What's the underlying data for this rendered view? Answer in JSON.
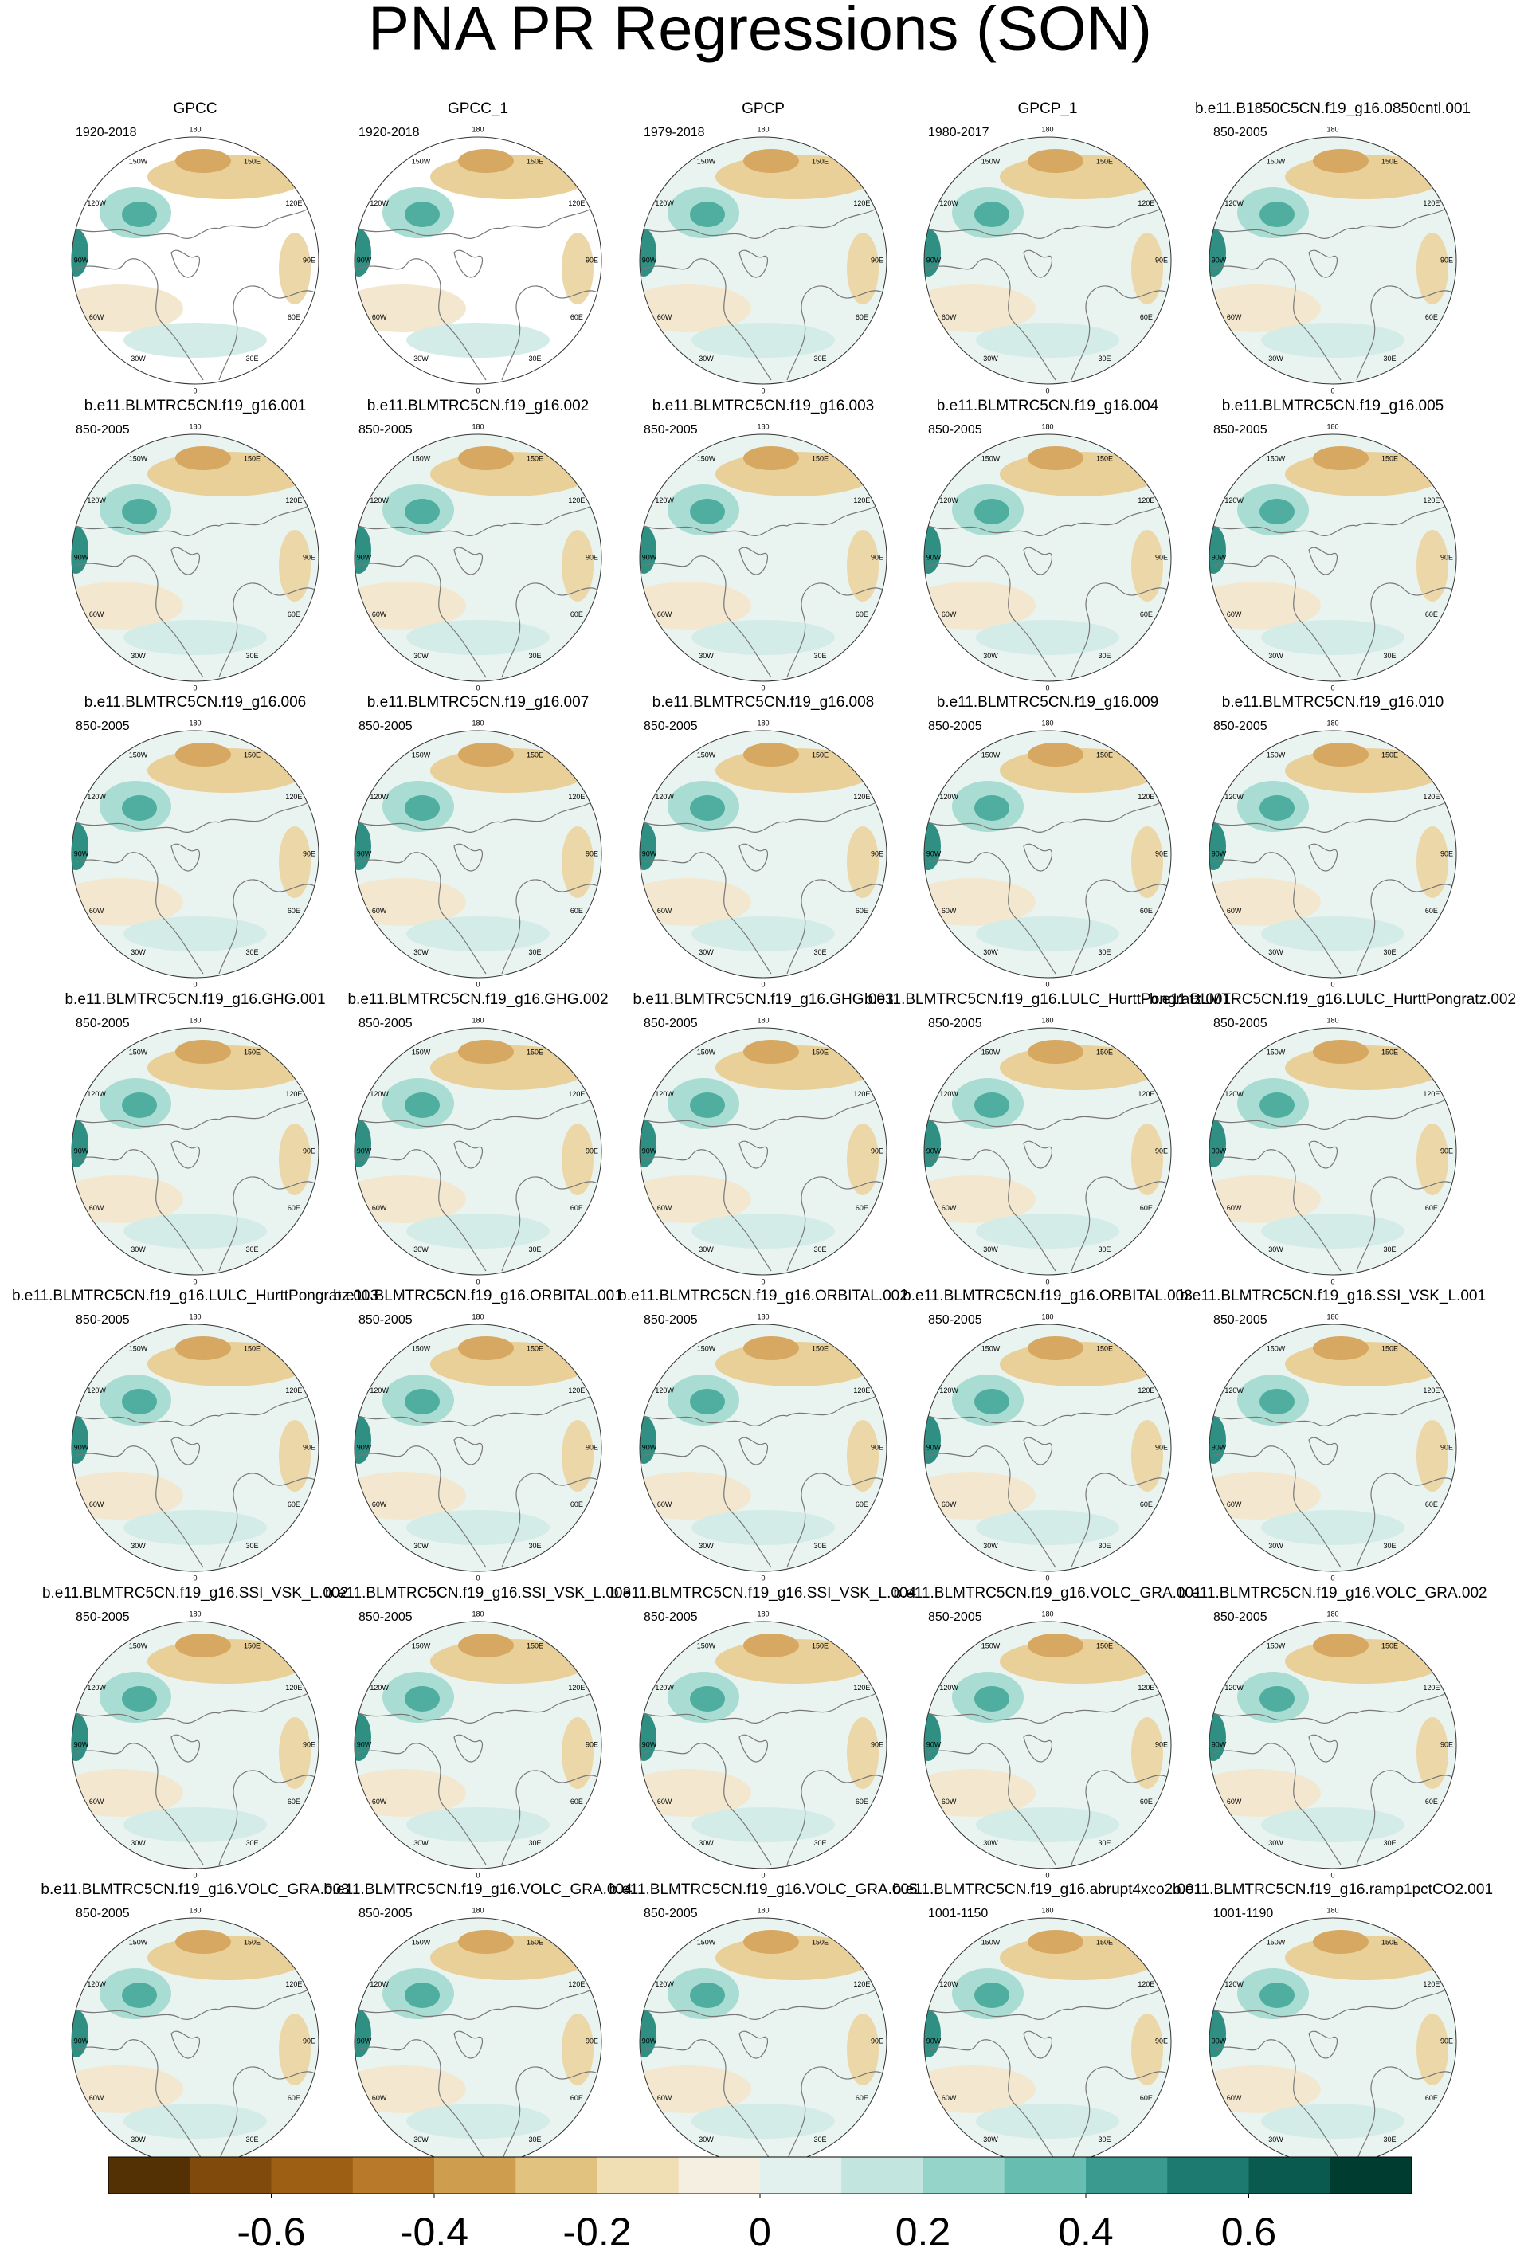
{
  "title": "PNA PR Regressions (SON)",
  "panels": [
    {
      "title": "GPCC",
      "period": "1920-2018"
    },
    {
      "title": "GPCC_1",
      "period": "1920-2018"
    },
    {
      "title": "GPCP",
      "period": "1979-2018"
    },
    {
      "title": "GPCP_1",
      "period": "1980-2017"
    },
    {
      "title": "b.e11.B1850C5CN.f19_g16.0850cntl.001",
      "period": "850-2005"
    },
    {
      "title": "b.e11.BLMTRC5CN.f19_g16.001",
      "period": "850-2005"
    },
    {
      "title": "b.e11.BLMTRC5CN.f19_g16.002",
      "period": "850-2005"
    },
    {
      "title": "b.e11.BLMTRC5CN.f19_g16.003",
      "period": "850-2005"
    },
    {
      "title": "b.e11.BLMTRC5CN.f19_g16.004",
      "period": "850-2005"
    },
    {
      "title": "b.e11.BLMTRC5CN.f19_g16.005",
      "period": "850-2005"
    },
    {
      "title": "b.e11.BLMTRC5CN.f19_g16.006",
      "period": "850-2005"
    },
    {
      "title": "b.e11.BLMTRC5CN.f19_g16.007",
      "period": "850-2005"
    },
    {
      "title": "b.e11.BLMTRC5CN.f19_g16.008",
      "period": "850-2005"
    },
    {
      "title": "b.e11.BLMTRC5CN.f19_g16.009",
      "period": "850-2005"
    },
    {
      "title": "b.e11.BLMTRC5CN.f19_g16.010",
      "period": "850-2005"
    },
    {
      "title": "b.e11.BLMTRC5CN.f19_g16.GHG.001",
      "period": "850-2005"
    },
    {
      "title": "b.e11.BLMTRC5CN.f19_g16.GHG.002",
      "period": "850-2005"
    },
    {
      "title": "b.e11.BLMTRC5CN.f19_g16.GHG.003",
      "period": "850-2005"
    },
    {
      "title": "b.e11.BLMTRC5CN.f19_g16.LULC_HurttPongratz.001",
      "period": "850-2005"
    },
    {
      "title": "b.e11.BLMTRC5CN.f19_g16.LULC_HurttPongratz.002",
      "period": "850-2005"
    },
    {
      "title": "b.e11.BLMTRC5CN.f19_g16.LULC_HurttPongratz.003",
      "period": "850-2005"
    },
    {
      "title": "b.e11.BLMTRC5CN.f19_g16.ORBITAL.001",
      "period": "850-2005"
    },
    {
      "title": "b.e11.BLMTRC5CN.f19_g16.ORBITAL.002",
      "period": "850-2005"
    },
    {
      "title": "b.e11.BLMTRC5CN.f19_g16.ORBITAL.003",
      "period": "850-2005"
    },
    {
      "title": "b.e11.BLMTRC5CN.f19_g16.SSI_VSK_L.001",
      "period": "850-2005"
    },
    {
      "title": "b.e11.BLMTRC5CN.f19_g16.SSI_VSK_L.002",
      "period": "850-2005"
    },
    {
      "title": "b.e11.BLMTRC5CN.f19_g16.SSI_VSK_L.003",
      "period": "850-2005"
    },
    {
      "title": "b.e11.BLMTRC5CN.f19_g16.SSI_VSK_L.004",
      "period": "850-2005"
    },
    {
      "title": "b.e11.BLMTRC5CN.f19_g16.VOLC_GRA.001",
      "period": "850-2005"
    },
    {
      "title": "b.e11.BLMTRC5CN.f19_g16.VOLC_GRA.002",
      "period": "850-2005"
    },
    {
      "title": "b.e11.BLMTRC5CN.f19_g16.VOLC_GRA.003",
      "period": "850-2005"
    },
    {
      "title": "b.e11.BLMTRC5CN.f19_g16.VOLC_GRA.004",
      "period": "850-2005"
    },
    {
      "title": "b.e11.BLMTRC5CN.f19_g16.VOLC_GRA.005",
      "period": "850-2005"
    },
    {
      "title": "b.e11.BLMTRC5CN.f19_g16.abrupt4xco2.001",
      "period": "1001-1150"
    },
    {
      "title": "b.e11.BLMTRC5CN.f19_g16.ramp1pctCO2.001",
      "period": "1001-1190"
    }
  ],
  "map_labels": [
    "180",
    "150E",
    "120E",
    "90E",
    "60E",
    "30E",
    "0",
    "30W",
    "60W",
    "90W",
    "120W",
    "150W"
  ],
  "colorbar": {
    "lim": [
      -0.8,
      0.8
    ],
    "ticks": [
      -0.6,
      -0.4,
      -0.2,
      0,
      0.2,
      0.4,
      0.6
    ],
    "colors": [
      "#543005",
      "#7f4a0c",
      "#9c5f14",
      "#b8792a",
      "#cf9d4e",
      "#e2c27f",
      "#f0deb4",
      "#f5efe2",
      "#e3f1ee",
      "#c2e6df",
      "#95d4c8",
      "#66bdb0",
      "#3a9a8f",
      "#1d7a70",
      "#0b5a50",
      "#003c30"
    ]
  }
}
